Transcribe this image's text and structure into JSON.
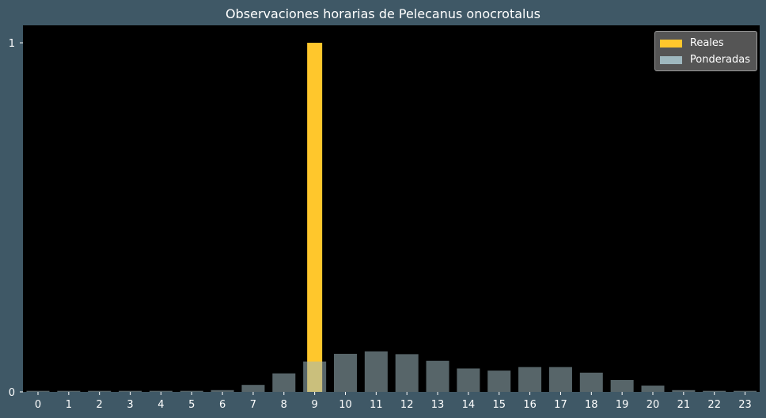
{
  "chart_data": {
    "type": "bar",
    "title": "Observaciones horarias de Pelecanus onocrotalus",
    "xlabel": "",
    "ylabel": "",
    "categories": [
      "0",
      "1",
      "2",
      "3",
      "4",
      "5",
      "6",
      "7",
      "8",
      "9",
      "10",
      "11",
      "12",
      "13",
      "14",
      "15",
      "16",
      "17",
      "18",
      "19",
      "20",
      "21",
      "22",
      "23"
    ],
    "yticks": [
      "0",
      "1"
    ],
    "ylim": [
      0,
      1.05
    ],
    "grid": false,
    "legend_position": "top-right",
    "series": [
      {
        "name": "Reales",
        "color": "#ffc72c",
        "values": [
          0,
          0,
          0,
          0,
          0,
          0,
          0,
          0,
          0,
          1,
          0,
          0,
          0,
          0,
          0,
          0,
          0,
          0,
          0,
          0,
          0,
          0,
          0,
          0
        ]
      },
      {
        "name": "Ponderadas",
        "color": "#9fb8bf",
        "values": [
          0.003,
          0.003,
          0.003,
          0.003,
          0.003,
          0.003,
          0.005,
          0.02,
          0.053,
          0.087,
          0.109,
          0.116,
          0.108,
          0.089,
          0.067,
          0.061,
          0.071,
          0.071,
          0.055,
          0.034,
          0.018,
          0.005,
          0.003,
          0.003
        ]
      }
    ]
  }
}
